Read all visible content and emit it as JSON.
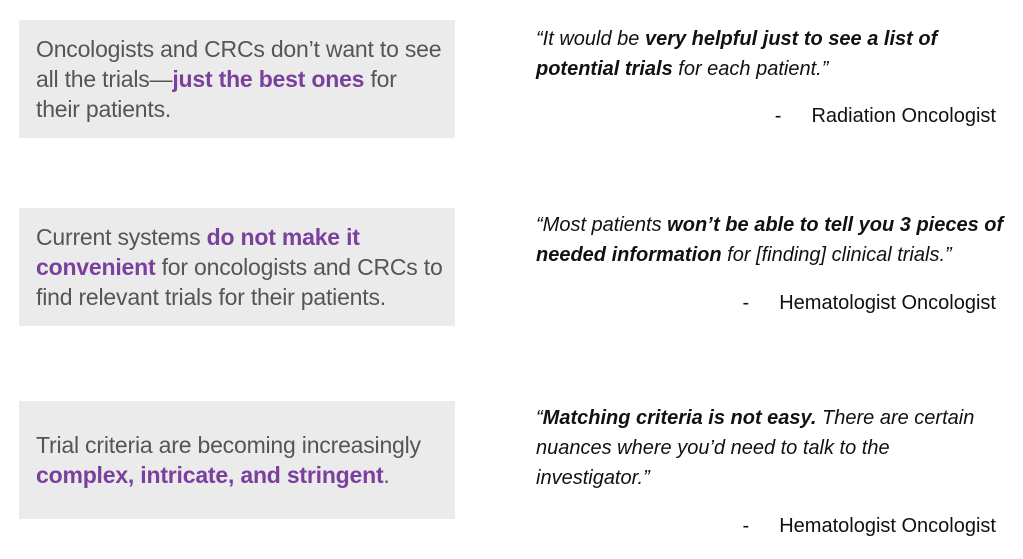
{
  "findings": [
    {
      "parts": [
        {
          "text": "Oncologists and CRCs don’t want to see all the trials—",
          "highlight": false
        },
        {
          "text": "just the best ones",
          "highlight": true
        },
        {
          "text": " for their patients.",
          "highlight": false
        }
      ]
    },
    {
      "parts": [
        {
          "text": "Current systems ",
          "highlight": false
        },
        {
          "text": "do not make it convenient",
          "highlight": true
        },
        {
          "text": " for oncologists and CRCs to find relevant trials for their patients.",
          "highlight": false
        }
      ]
    },
    {
      "parts": [
        {
          "text": "Trial criteria are becoming increasingly ",
          "highlight": false
        },
        {
          "text": "complex, intricate, and stringent",
          "highlight": true
        },
        {
          "text": ".",
          "highlight": false
        }
      ]
    }
  ],
  "quotes": [
    {
      "parts": [
        {
          "text": "“It would be ",
          "bold": false
        },
        {
          "text": "very helpful just to see a list of potential trials",
          "bold": true
        },
        {
          "text": " for each patient.”",
          "bold": false
        }
      ],
      "dash": "-",
      "attribution": "Radiation Oncologist"
    },
    {
      "parts": [
        {
          "text": "“Most patients ",
          "bold": false
        },
        {
          "text": "won’t be able to tell you 3 pieces of needed information",
          "bold": true
        },
        {
          "text": " for [finding] clinical trials.”",
          "bold": false
        }
      ],
      "dash": "-",
      "attribution": "Hematologist Oncologist"
    },
    {
      "parts": [
        {
          "text": "“",
          "bold": false
        },
        {
          "text": "Matching criteria is not easy.",
          "bold": true
        },
        {
          "text": " There are certain nuances where you’d need to talk to the investigator.”",
          "bold": false
        }
      ],
      "dash": "-",
      "attribution": "Hematologist Oncologist"
    }
  ],
  "colors": {
    "highlight": "#7b3f9e",
    "box_background": "#ebebeb",
    "body_text": "#555555"
  }
}
